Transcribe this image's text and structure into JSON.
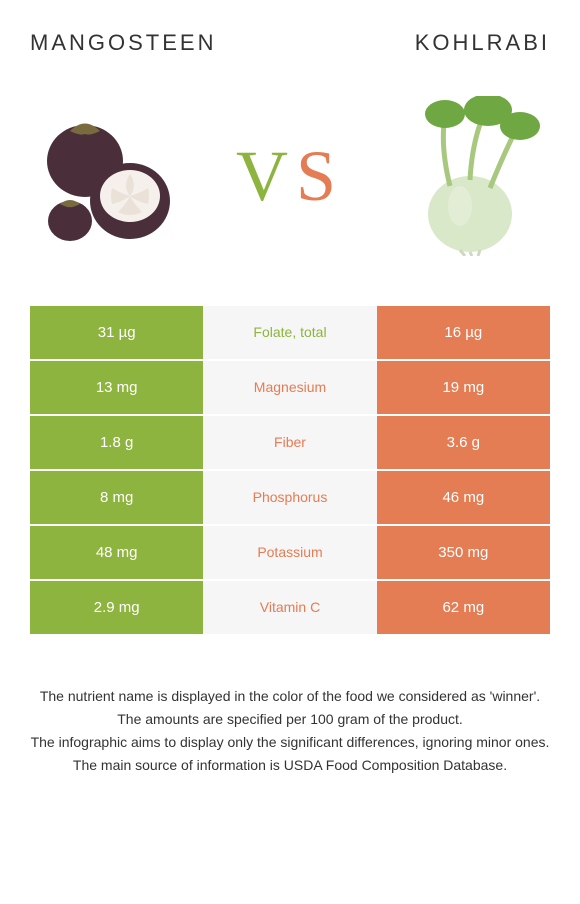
{
  "header": {
    "left_title": "Mangosteen",
    "right_title": "Kohlrabi",
    "vs_v": "V",
    "vs_s": "S"
  },
  "colors": {
    "left": "#8db43e",
    "right": "#e47c54",
    "mid_bg": "#f6f6f6",
    "mangosteen_skin": "#4a2f3a",
    "mangosteen_flesh": "#f5f0eb",
    "mangosteen_leaf": "#7a6b3f",
    "kohlrabi_bulb": "#d8e8c8",
    "kohlrabi_leaf": "#6fa843",
    "kohlrabi_stem": "#a8c880"
  },
  "rows": [
    {
      "left": "31 µg",
      "label": "Folate, total",
      "right": "16 µg",
      "winner": "left"
    },
    {
      "left": "13 mg",
      "label": "Magnesium",
      "right": "19 mg",
      "winner": "right"
    },
    {
      "left": "1.8 g",
      "label": "Fiber",
      "right": "3.6 g",
      "winner": "right"
    },
    {
      "left": "8 mg",
      "label": "Phosphorus",
      "right": "46 mg",
      "winner": "right"
    },
    {
      "left": "48 mg",
      "label": "Potassium",
      "right": "350 mg",
      "winner": "right"
    },
    {
      "left": "2.9 mg",
      "label": "Vitamin C",
      "right": "62 mg",
      "winner": "right"
    }
  ],
  "footer": {
    "line1": "The nutrient name is displayed in the color of the food we considered as 'winner'.",
    "line2": "The amounts are specified per 100 gram of the product.",
    "line3": "The infographic aims to display only the significant differences, ignoring minor ones.",
    "line4": "The main source of information is USDA Food Composition Database."
  }
}
